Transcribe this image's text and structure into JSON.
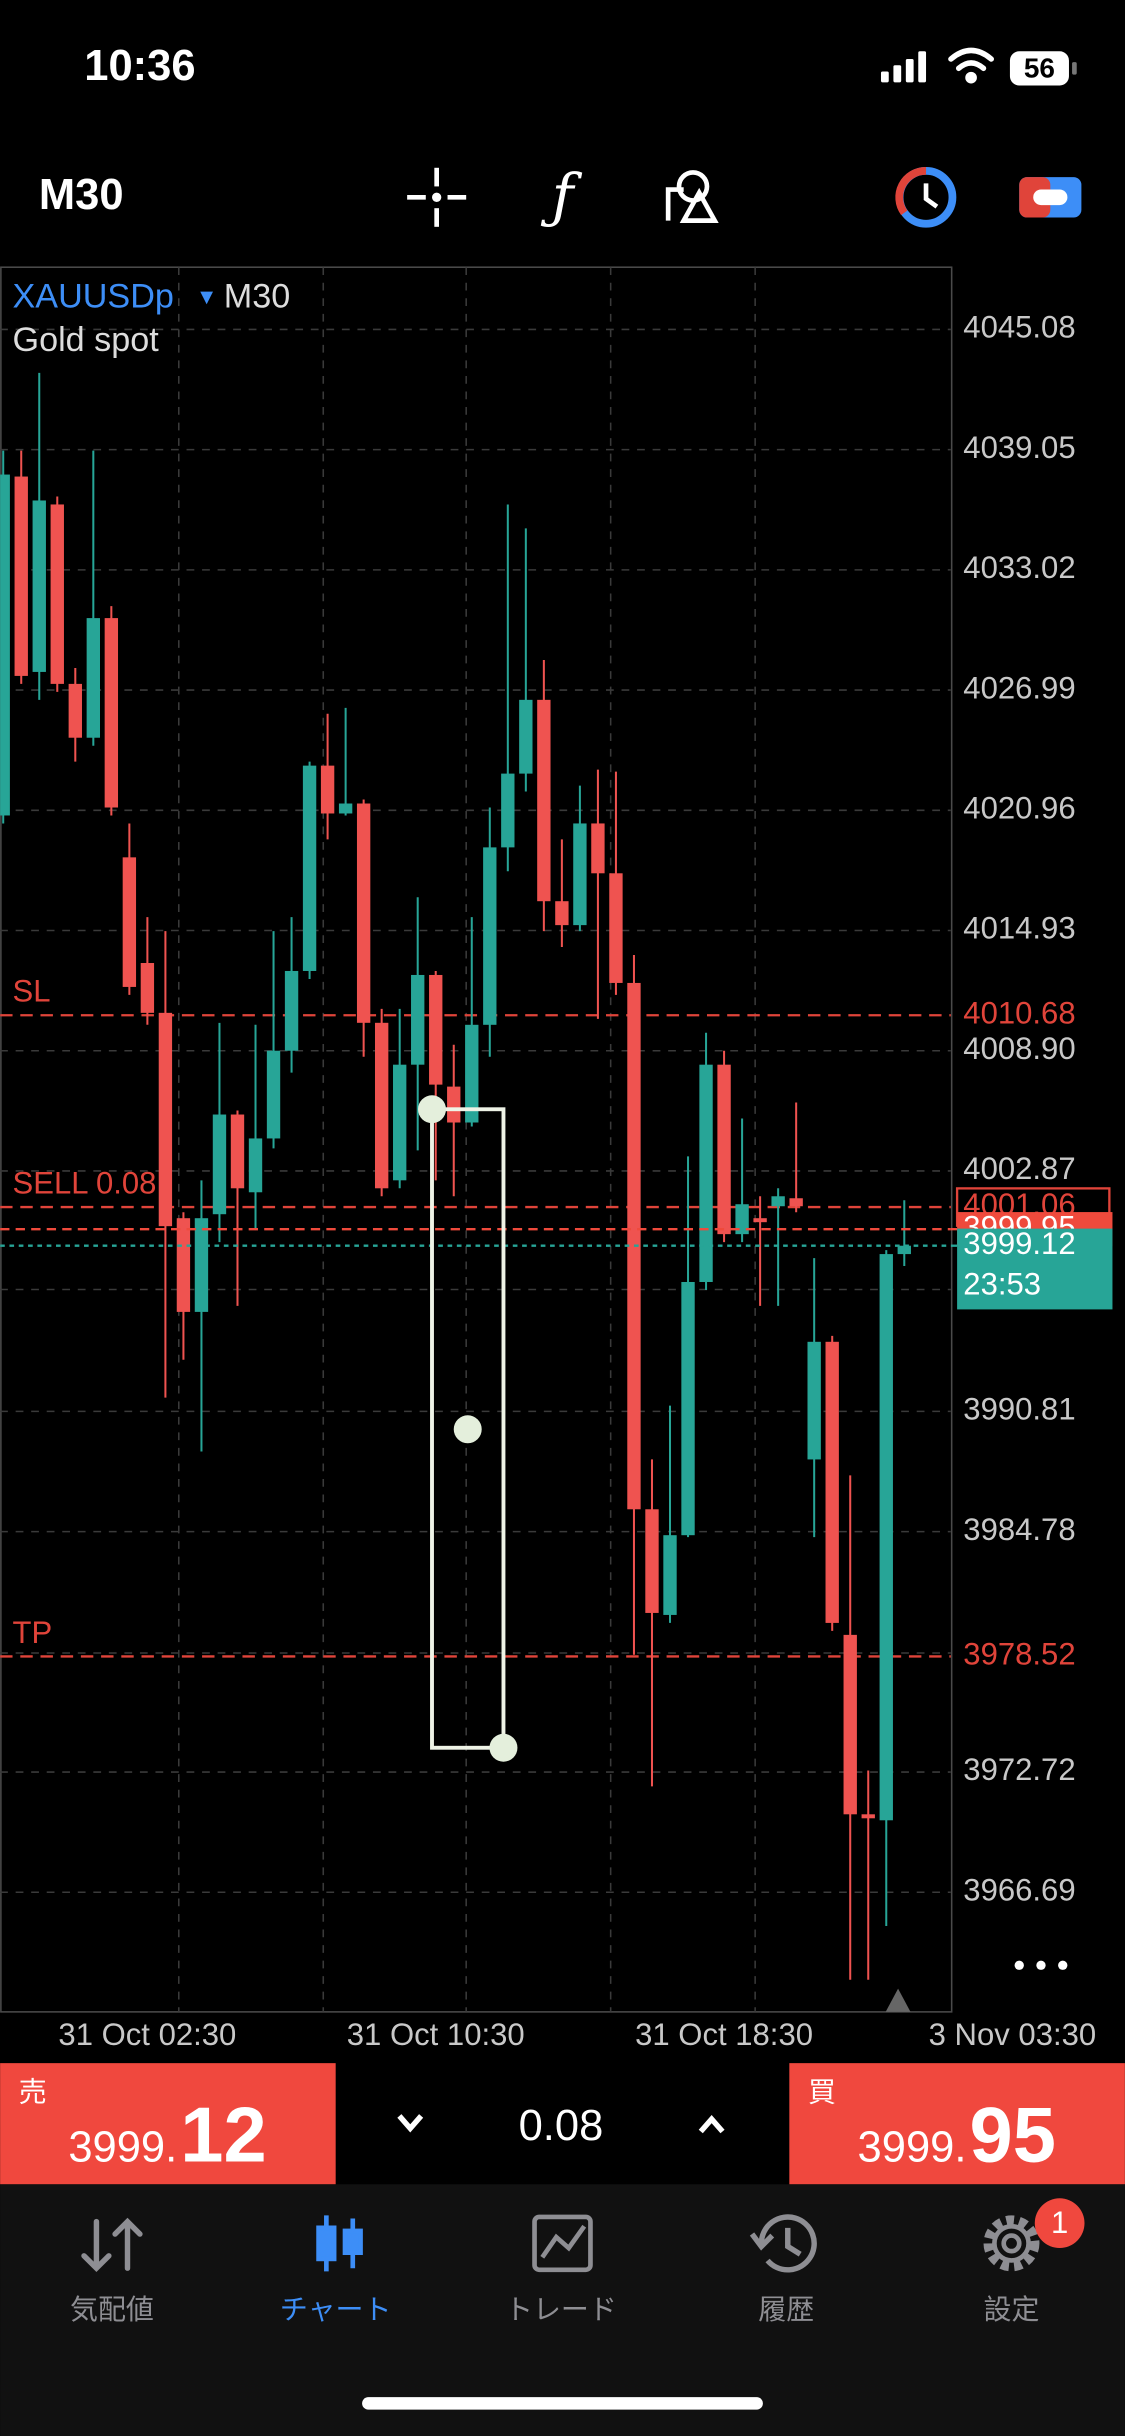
{
  "status_bar": {
    "time": "10:36",
    "battery": "56"
  },
  "toolbar": {
    "timeframe": "M30"
  },
  "chart_data": {
    "type": "candlestick",
    "symbol": "XAUUSDp",
    "timeframe": "M30",
    "description": "Gold spot",
    "categories": [
      null,
      null,
      null,
      null,
      null,
      null,
      null,
      null,
      "31 Oct 02:30",
      null,
      null,
      null,
      null,
      null,
      null,
      null,
      null,
      null,
      null,
      null,
      null,
      null,
      null,
      null,
      "31 Oct 10:30",
      null,
      null,
      null,
      null,
      null,
      null,
      null,
      null,
      null,
      null,
      null,
      null,
      null,
      null,
      null,
      "31 Oct 18:30",
      null,
      null,
      null,
      null,
      null,
      null,
      null,
      null,
      null,
      null,
      null,
      null,
      null,
      null,
      null,
      "3 Nov 03:30"
    ],
    "open": [
      4020.7,
      4037.7,
      4027.9,
      4036.3,
      4027.3,
      4024.6,
      4030.6,
      4018.6,
      4013.3,
      4010.8,
      4000.5,
      3995.8,
      4000.7,
      4005.7,
      4001.8,
      4004.5,
      4008.9,
      4012.9,
      4023.2,
      4020.8,
      4021.3,
      4010.3,
      4002.4,
      4008.2,
      4012.7,
      4007.1,
      4005.3,
      4010.2,
      4019.1,
      4022.8,
      4026.5,
      4016.4,
      4015.2,
      4020.3,
      4017.8,
      4012.3,
      3985.9,
      3980.6,
      3984.6,
      3997.3,
      4008.2,
      3999.7,
      4000.5,
      4001.1,
      4001.5,
      3988.4,
      3994.3,
      3979.6,
      3970.6,
      3970.3,
      3998.7,
      null,
      null,
      null,
      null,
      null,
      null
    ],
    "high": [
      4039.0,
      4039.0,
      4042.9,
      4036.7,
      4028.1,
      4039.0,
      4031.2,
      4020.3,
      4015.6,
      4014.9,
      4000.8,
      4002.4,
      4010.3,
      4005.9,
      4010.2,
      4014.9,
      4015.6,
      4023.4,
      4025.8,
      4026.1,
      4021.5,
      4011.0,
      4011.0,
      4016.6,
      4012.9,
      4009.2,
      4015.6,
      4021.1,
      4036.3,
      4035.1,
      4028.5,
      4019.5,
      4022.2,
      4023.0,
      4022.9,
      4013.7,
      3988.4,
      3991.1,
      4003.6,
      4009.8,
      4008.9,
      4005.5,
      4001.6,
      4002.0,
      4006.3,
      3998.5,
      3994.6,
      3987.6,
      3972.8,
      3998.9,
      4001.4,
      null,
      null,
      null,
      null,
      null,
      null
    ],
    "low": [
      4020.3,
      4027.3,
      4026.5,
      4026.9,
      4023.4,
      4024.2,
      4020.7,
      4011.7,
      4010.2,
      3991.5,
      3993.4,
      3988.8,
      3999.3,
      3996.1,
      3999.9,
      4004.0,
      4007.8,
      4012.5,
      4019.5,
      4020.7,
      4008.6,
      4001.6,
      4002.0,
      4003.9,
      4002.4,
      4001.6,
      4005.1,
      4008.6,
      4017.9,
      4021.9,
      4014.9,
      4014.1,
      4014.9,
      4010.5,
      4011.7,
      3978.6,
      3972.0,
      3980.2,
      3984.5,
      3996.9,
      3999.3,
      3999.3,
      3996.1,
      3996.1,
      4000.8,
      3984.5,
      3979.8,
      3962.3,
      3962.3,
      3965.0,
      3998.1,
      null,
      null,
      null,
      null,
      null,
      null
    ],
    "close": [
      4037.8,
      4027.7,
      4036.5,
      4027.3,
      4024.6,
      4030.6,
      4021.1,
      4012.1,
      4010.8,
      4000.1,
      3995.8,
      4000.5,
      4005.7,
      4002.0,
      4004.5,
      4008.9,
      4012.9,
      4023.2,
      4020.8,
      4021.3,
      4010.3,
      4002.0,
      4008.2,
      4012.7,
      4007.2,
      4005.3,
      4010.2,
      4019.1,
      4022.8,
      4026.5,
      4016.4,
      4015.2,
      4020.3,
      4017.8,
      4012.3,
      3985.9,
      3980.7,
      3984.6,
      3997.3,
      4008.2,
      3999.7,
      4001.2,
      4000.3,
      4001.6,
      4001.1,
      3994.3,
      3980.2,
      3970.6,
      3970.4,
      3998.7,
      3999.12,
      null,
      null,
      null,
      null,
      null,
      null
    ],
    "up_color": "#27a597",
    "down_color": "#ef5350",
    "ylim": [
      3960.69,
      4048.2
    ],
    "yticks": [
      4045.08,
      4039.05,
      4033.02,
      4026.99,
      4020.96,
      4014.93,
      {
        "value": 4008.9,
        "label": "4008.90"
      },
      4002.87,
      3990.81,
      3984.78,
      3972.72,
      3966.69
    ],
    "grid": true,
    "levels": [
      {
        "label": "SL",
        "value": 4010.68,
        "color": "#e0443a"
      },
      {
        "label": "SELL 0.08",
        "value": 4001.06,
        "color": "#e0443a"
      },
      {
        "label": "TP",
        "value": 3978.52,
        "color": "#e0443a"
      }
    ],
    "price_lines": [
      {
        "value": 3999.95,
        "color": "#ef4a3c"
      },
      {
        "value": 3999.12,
        "color": "#27a597",
        "countdown": "23:53"
      }
    ]
  },
  "trade_bar": {
    "sell_label": "売",
    "sell_price": "3999.",
    "sell_pips": "12",
    "volume": "0.08",
    "buy_label": "買",
    "buy_price": "3999.",
    "buy_pips": "95"
  },
  "tab_bar": {
    "tabs": [
      "気配値",
      "チャート",
      "トレード",
      "履歴",
      "設定"
    ],
    "badge": "1"
  }
}
